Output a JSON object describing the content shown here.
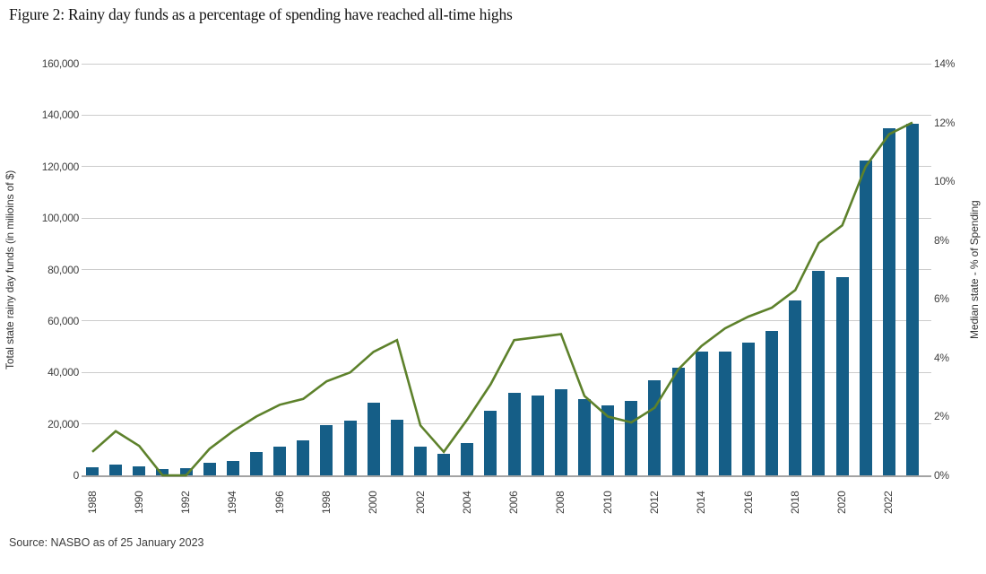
{
  "header": {
    "title": "Figure 2: Rainy day funds as a percentage of spending have reached all-time highs"
  },
  "footer": {
    "source": "Source: NASBO as of 25 January 2023"
  },
  "colors": {
    "bar": "#155e87",
    "line": "#5d812b",
    "gridline": "#cccccc",
    "baseline": "#a3a3a3",
    "tick_text": "#3f3f3f"
  },
  "chart_data": {
    "type": "bar",
    "title": "Figure 2: Rainy day funds as a percentage of spending have reached all-time highs",
    "grid": "horizontal",
    "legend_position": "none",
    "categories": [
      1988,
      1989,
      1990,
      1991,
      1992,
      1993,
      1994,
      1995,
      1996,
      1997,
      1998,
      1999,
      2000,
      2001,
      2002,
      2003,
      2004,
      2005,
      2006,
      2007,
      2008,
      2009,
      2010,
      2011,
      2012,
      2013,
      2014,
      2015,
      2016,
      2017,
      2018,
      2019,
      2020,
      2021,
      2022,
      2023
    ],
    "series": [
      {
        "name": "Total state rainy day funds (in milioins of $)",
        "type": "bar",
        "axis": "left",
        "color": "#155e87",
        "values": [
          3000,
          4300,
          3400,
          2400,
          2800,
          5000,
          5700,
          9000,
          11000,
          13600,
          19500,
          21200,
          28200,
          21500,
          11000,
          8500,
          12500,
          25000,
          32000,
          31000,
          33400,
          29500,
          27300,
          29100,
          37100,
          42000,
          48100,
          48100,
          51700,
          56000,
          68000,
          79600,
          77100,
          122200,
          135000,
          136800
        ]
      },
      {
        "name": "Median state - % of Spending",
        "type": "line",
        "axis": "right",
        "color": "#5d812b",
        "values": [
          0.8,
          1.5,
          1.0,
          0.0,
          0.0,
          0.9,
          1.5,
          2.0,
          2.4,
          2.6,
          3.2,
          3.5,
          4.2,
          4.6,
          1.7,
          0.8,
          1.9,
          3.1,
          4.6,
          4.7,
          4.8,
          2.7,
          2.0,
          1.8,
          2.3,
          3.6,
          4.4,
          5.0,
          5.4,
          5.7,
          6.3,
          7.9,
          8.5,
          10.5,
          11.6,
          12.0
        ]
      }
    ],
    "left_axis": {
      "label": "Total state rainy day funds (in milioins of $)",
      "min": 0,
      "max": 160000,
      "tick_step": 20000,
      "tick_labels": [
        "0",
        "20,000",
        "40,000",
        "60,000",
        "80,000",
        "100,000",
        "120,000",
        "140,000",
        "160,000"
      ]
    },
    "right_axis": {
      "label": "Median state  - % of Spending",
      "min": 0,
      "max": 14,
      "tick_step": 2,
      "tick_labels": [
        "0%",
        "2%",
        "4%",
        "6%",
        "8%",
        "10%",
        "12%",
        "14%"
      ]
    },
    "x_axis": {
      "tick_labels": [
        "1988",
        "1990",
        "1992",
        "1994",
        "1996",
        "1998",
        "2000",
        "2002",
        "2004",
        "2006",
        "2008",
        "2010",
        "2012",
        "2014",
        "2016",
        "2018",
        "2020",
        "2022"
      ],
      "label_rotation": -90
    }
  }
}
